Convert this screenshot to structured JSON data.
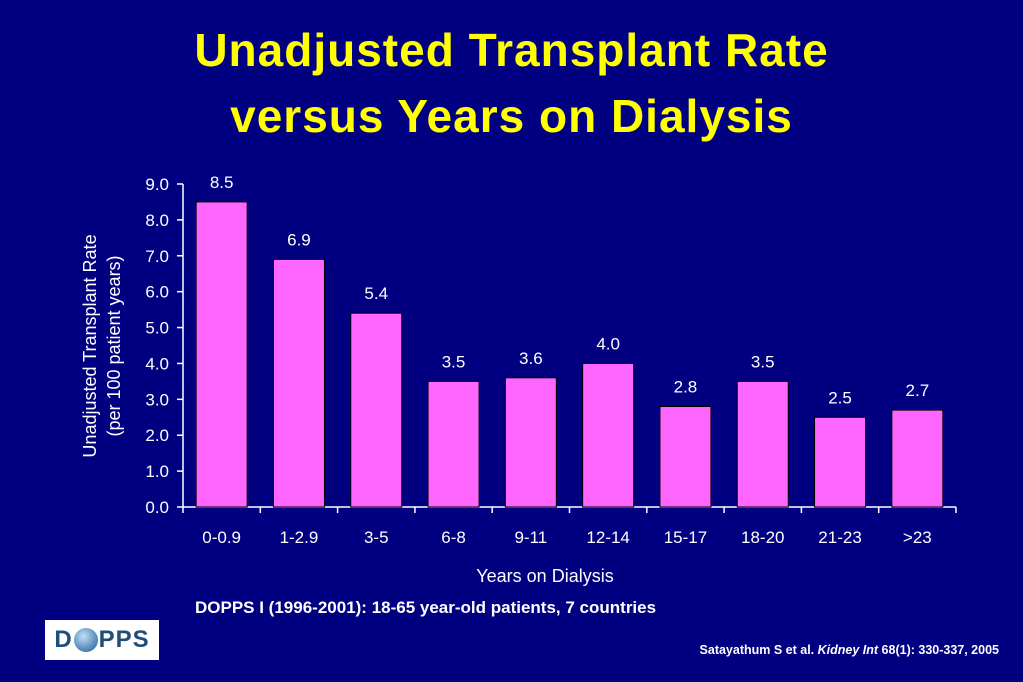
{
  "slide": {
    "title_line1": "Unadjusted Transplant Rate",
    "title_line2": "versus Years on Dialysis",
    "subtitle": "DOPPS I (1996-2001):  18-65 year-old patients, 7 countries",
    "citation": {
      "authors": "Satayathum S et al.",
      "journal": "Kidney Int",
      "ref": "68(1): 330-337, 2005"
    },
    "logo": {
      "text_before": "D",
      "text_after": "PPS",
      "globe_icon": "globe-icon"
    }
  },
  "colors": {
    "background": "#000080",
    "title": "#ffff00",
    "bar": "#ff66ff",
    "text": "#ffffff"
  },
  "chart_data": {
    "type": "bar",
    "title": "",
    "xlabel": "Years on  Dialysis",
    "ylabel_line1": "Unadjusted Transplant Rate",
    "ylabel_line2": "(per 100 patient years)",
    "categories": [
      "0-0.9",
      "1-2.9",
      "3-5",
      "6-8",
      "9-11",
      "12-14",
      "15-17",
      "18-20",
      "21-23",
      ">23"
    ],
    "values": [
      8.5,
      6.9,
      5.4,
      3.5,
      3.6,
      4.0,
      2.8,
      3.5,
      2.5,
      2.7
    ],
    "data_labels": [
      "8.5",
      "6.9",
      "5.4",
      "3.5",
      "3.6",
      "4.0",
      "2.8",
      "3.5",
      "2.5",
      "2.7"
    ],
    "yticks": [
      "0.0",
      "1.0",
      "2.0",
      "3.0",
      "4.0",
      "5.0",
      "6.0",
      "7.0",
      "8.0",
      "9.0"
    ],
    "ylim": [
      0,
      9
    ],
    "grid": false,
    "legend": "none"
  }
}
